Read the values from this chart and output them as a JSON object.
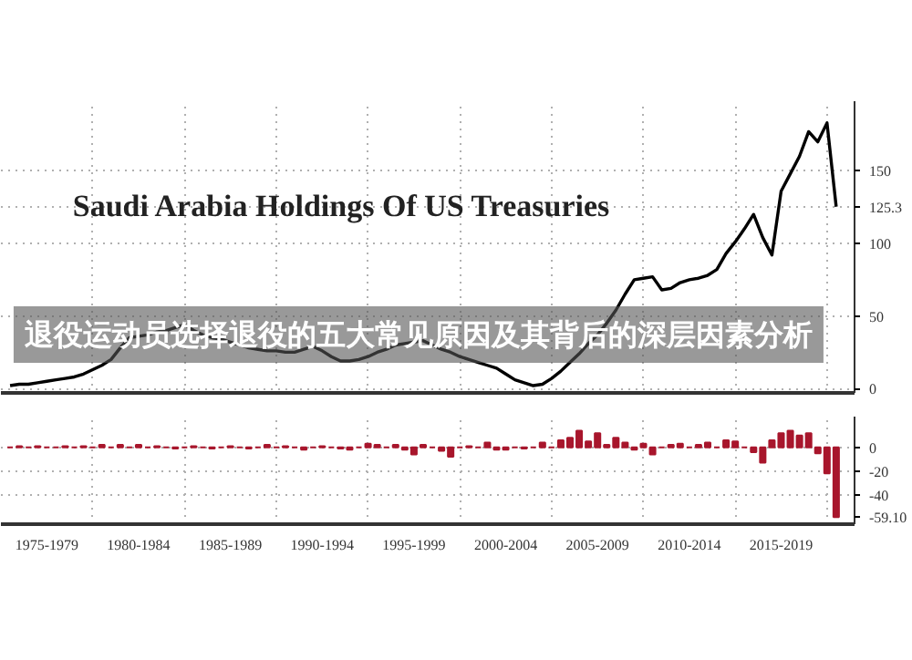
{
  "chart_data": [
    {
      "type": "line",
      "title": "Saudi Arabia Holdings Of US Treasuries",
      "categories": [
        null,
        null,
        null,
        null,
        null,
        null,
        null,
        null,
        null,
        null,
        null,
        null,
        null,
        null,
        null,
        null,
        null,
        null,
        null,
        null,
        null,
        null,
        null,
        null,
        null,
        null,
        null,
        null,
        null,
        null,
        null,
        null,
        null,
        null,
        null,
        null,
        null,
        null,
        null,
        null,
        null,
        null,
        null,
        null,
        null,
        null,
        null,
        null,
        null,
        null,
        null,
        null,
        null,
        null,
        null,
        null,
        null,
        null,
        null,
        null,
        null,
        null,
        null,
        null,
        null,
        null,
        null,
        null,
        null,
        null,
        null,
        null,
        null,
        null,
        null,
        null,
        null,
        null,
        null,
        null,
        null,
        null,
        null,
        null,
        null,
        null,
        null,
        null,
        null,
        null,
        null
      ],
      "series": [
        {
          "color": "#000000",
          "values": [
            2,
            3,
            3,
            4,
            5,
            6,
            7,
            8,
            10,
            13,
            16,
            20,
            28,
            35,
            36,
            37,
            39,
            40,
            42,
            44,
            40,
            37,
            35,
            34,
            32,
            30,
            28,
            27,
            26,
            26,
            25,
            25,
            27,
            29,
            26,
            22,
            19,
            19,
            20,
            22,
            25,
            27,
            30,
            31,
            32,
            33,
            30,
            27,
            25,
            22,
            20,
            18,
            16,
            14,
            10,
            6,
            4,
            2,
            3,
            7,
            12,
            18,
            24,
            31,
            37,
            45,
            54,
            65,
            75,
            76,
            77,
            68,
            69,
            73,
            75,
            76,
            78,
            82,
            93,
            101,
            110,
            120,
            104,
            92,
            136,
            148,
            160,
            177,
            170,
            183,
            125.3
          ]
        }
      ],
      "ylim": [
        -3,
        198
      ],
      "yticks": [
        0,
        50,
        100,
        {
          "value": 125.3,
          "label": "125.3"
        },
        150
      ],
      "grid": true,
      "annotations": [
        "退役运动员选择退役的五大常见原因及其背后的深层因素分析"
      ]
    },
    {
      "type": "bar",
      "categories": [
        null,
        null,
        null,
        null,
        "1975-1979",
        null,
        null,
        null,
        null,
        null,
        null,
        null,
        null,
        null,
        "1980-1984",
        null,
        null,
        null,
        null,
        null,
        null,
        null,
        null,
        null,
        "1985-1989",
        null,
        null,
        null,
        null,
        null,
        null,
        null,
        null,
        null,
        "1990-1994",
        null,
        null,
        null,
        null,
        null,
        null,
        null,
        null,
        null,
        "1995-1999",
        null,
        null,
        null,
        null,
        null,
        null,
        null,
        null,
        null,
        "2000-2004",
        null,
        null,
        null,
        null,
        null,
        null,
        null,
        null,
        null,
        "2005-2009",
        null,
        null,
        null,
        null,
        null,
        null,
        null,
        null,
        null,
        "2010-2014",
        null,
        null,
        null,
        null,
        null,
        null,
        null,
        null,
        null,
        "2015-2019",
        null,
        null,
        null,
        null,
        null,
        null
      ],
      "series": [
        {
          "color": "#a8162c",
          "values": [
            0,
            1,
            0,
            1,
            0,
            0,
            1,
            0,
            1,
            0,
            2,
            0,
            2,
            0,
            2,
            0,
            1,
            0,
            -1,
            0,
            1,
            0,
            -1,
            0,
            1,
            0,
            -1,
            0,
            2,
            0,
            1,
            0,
            -2,
            0,
            1,
            0,
            -1,
            -2,
            0,
            3,
            2,
            0,
            2,
            -2,
            -6,
            2,
            0,
            -3,
            -8,
            0,
            1,
            0,
            4,
            -2,
            -2,
            0,
            -1,
            0,
            4,
            0,
            6,
            8,
            14,
            5,
            12,
            2,
            8,
            4,
            -2,
            3,
            -6,
            0,
            2,
            3,
            0,
            2,
            4,
            0,
            6,
            5,
            0,
            -4,
            -13,
            6,
            12,
            14,
            10,
            12,
            -5,
            -22,
            -59.1
          ]
        }
      ],
      "ylim": [
        -65,
        26
      ],
      "yticks": [
        0,
        -20,
        -40,
        {
          "value": -59.1,
          "label": "-59.10"
        }
      ],
      "grid": true
    }
  ]
}
